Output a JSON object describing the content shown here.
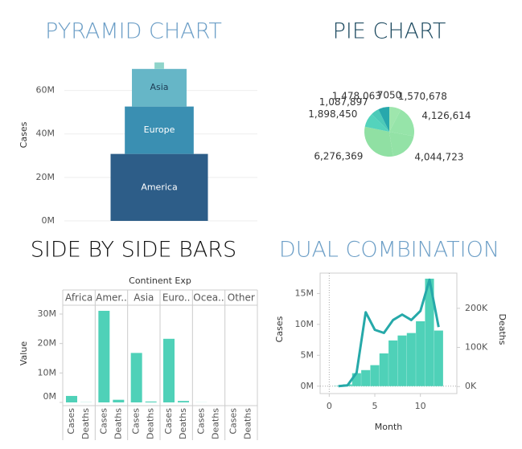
{
  "chart_data": [
    {
      "type": "pyramid",
      "title": "PYRAMID CHART",
      "title_color": "#6d9fc7",
      "y_label": "Cases",
      "categories": [
        "America",
        "Europe",
        "Asia",
        null
      ],
      "values": [
        30800000,
        21800000,
        17300000,
        3000000
      ],
      "colors": [
        "#2d5d88",
        "#3a8fb2",
        "#66b6c7",
        "#8fd4ca"
      ],
      "ylim": [
        0,
        75000000
      ],
      "yticks": [
        {
          "value": 0,
          "label": "0M"
        },
        {
          "value": 20000000,
          "label": "20M"
        },
        {
          "value": 40000000,
          "label": "40M"
        },
        {
          "value": 60000000,
          "label": "60M"
        }
      ],
      "grid": true
    },
    {
      "type": "pie",
      "title": "PIE CHART",
      "title_color": "#1d4a60",
      "values": [
        7050,
        1570678,
        4126614,
        4044723,
        6276369,
        1898450,
        1087897,
        1478063
      ],
      "value_labels": [
        "7050",
        "1,570,678",
        "4,126,614",
        "4,044,723",
        "6,276,369",
        "1,898,450",
        "1,087,897",
        "1,478,063"
      ],
      "colors": [
        "#1f6f86",
        "#9ee6ad",
        "#96e4a9",
        "#93e2a6",
        "#90e0a3",
        "#54d3bc",
        "#4ccab8",
        "#27a8ac"
      ]
    },
    {
      "type": "bar",
      "title": "SIDE BY SIDE BARS",
      "title_color": "#111111",
      "x_label": "Continent Exp",
      "y_label": "Value",
      "categories": [
        "Africa",
        "Amer..",
        "Asia",
        "Euro..",
        "Ocea..",
        "Other"
      ],
      "series": [
        {
          "name": "Cases",
          "color": "#4fd1b8",
          "values": [
            2200000,
            31100000,
            16800000,
            21600000,
            30000,
            1000
          ]
        },
        {
          "name": "Deaths",
          "color": "#4fd1b8",
          "values": [
            50000,
            900000,
            300000,
            500000,
            1000,
            0
          ]
        }
      ],
      "ylim": [
        0,
        33000000
      ],
      "yticks": [
        {
          "value": 0,
          "label": "0M"
        },
        {
          "value": 10000000,
          "label": "10M"
        },
        {
          "value": 20000000,
          "label": "20M"
        },
        {
          "value": 30000000,
          "label": "30M"
        }
      ]
    },
    {
      "type": "combo",
      "title": "DUAL COMBINATION",
      "title_color": "#6d9fc7",
      "x_label": "Month",
      "y_label": "Cases",
      "y2_label": "Deaths",
      "x": [
        1,
        2,
        3,
        4,
        5,
        6,
        7,
        8,
        9,
        10,
        11,
        12
      ],
      "series": [
        {
          "kind": "bar",
          "color": "#4fd1b8",
          "values": [
            50000,
            300000,
            2100000,
            2600000,
            3400000,
            5300000,
            7400000,
            8200000,
            8600000,
            10500000,
            17400000,
            9000000
          ]
        },
        {
          "kind": "line",
          "axis": "y2",
          "color": "#26a9a9",
          "values": [
            1000,
            3000,
            35000,
            190000,
            145000,
            137000,
            170000,
            184000,
            170000,
            193000,
            273000,
            152000
          ]
        }
      ],
      "xlim": [
        -1,
        14
      ],
      "xticks": [
        0,
        5,
        10
      ],
      "ylim": [
        -1200000,
        18300000
      ],
      "yticks": [
        {
          "value": 0,
          "label": "0M"
        },
        {
          "value": 5000000,
          "label": "5M"
        },
        {
          "value": 10000000,
          "label": "10M"
        },
        {
          "value": 15000000,
          "label": "15M"
        }
      ],
      "y2lim": [
        -18000,
        290000
      ],
      "y2ticks": [
        {
          "value": 0,
          "label": "0K"
        },
        {
          "value": 100000,
          "label": "100K"
        },
        {
          "value": 200000,
          "label": "200K"
        }
      ]
    }
  ]
}
